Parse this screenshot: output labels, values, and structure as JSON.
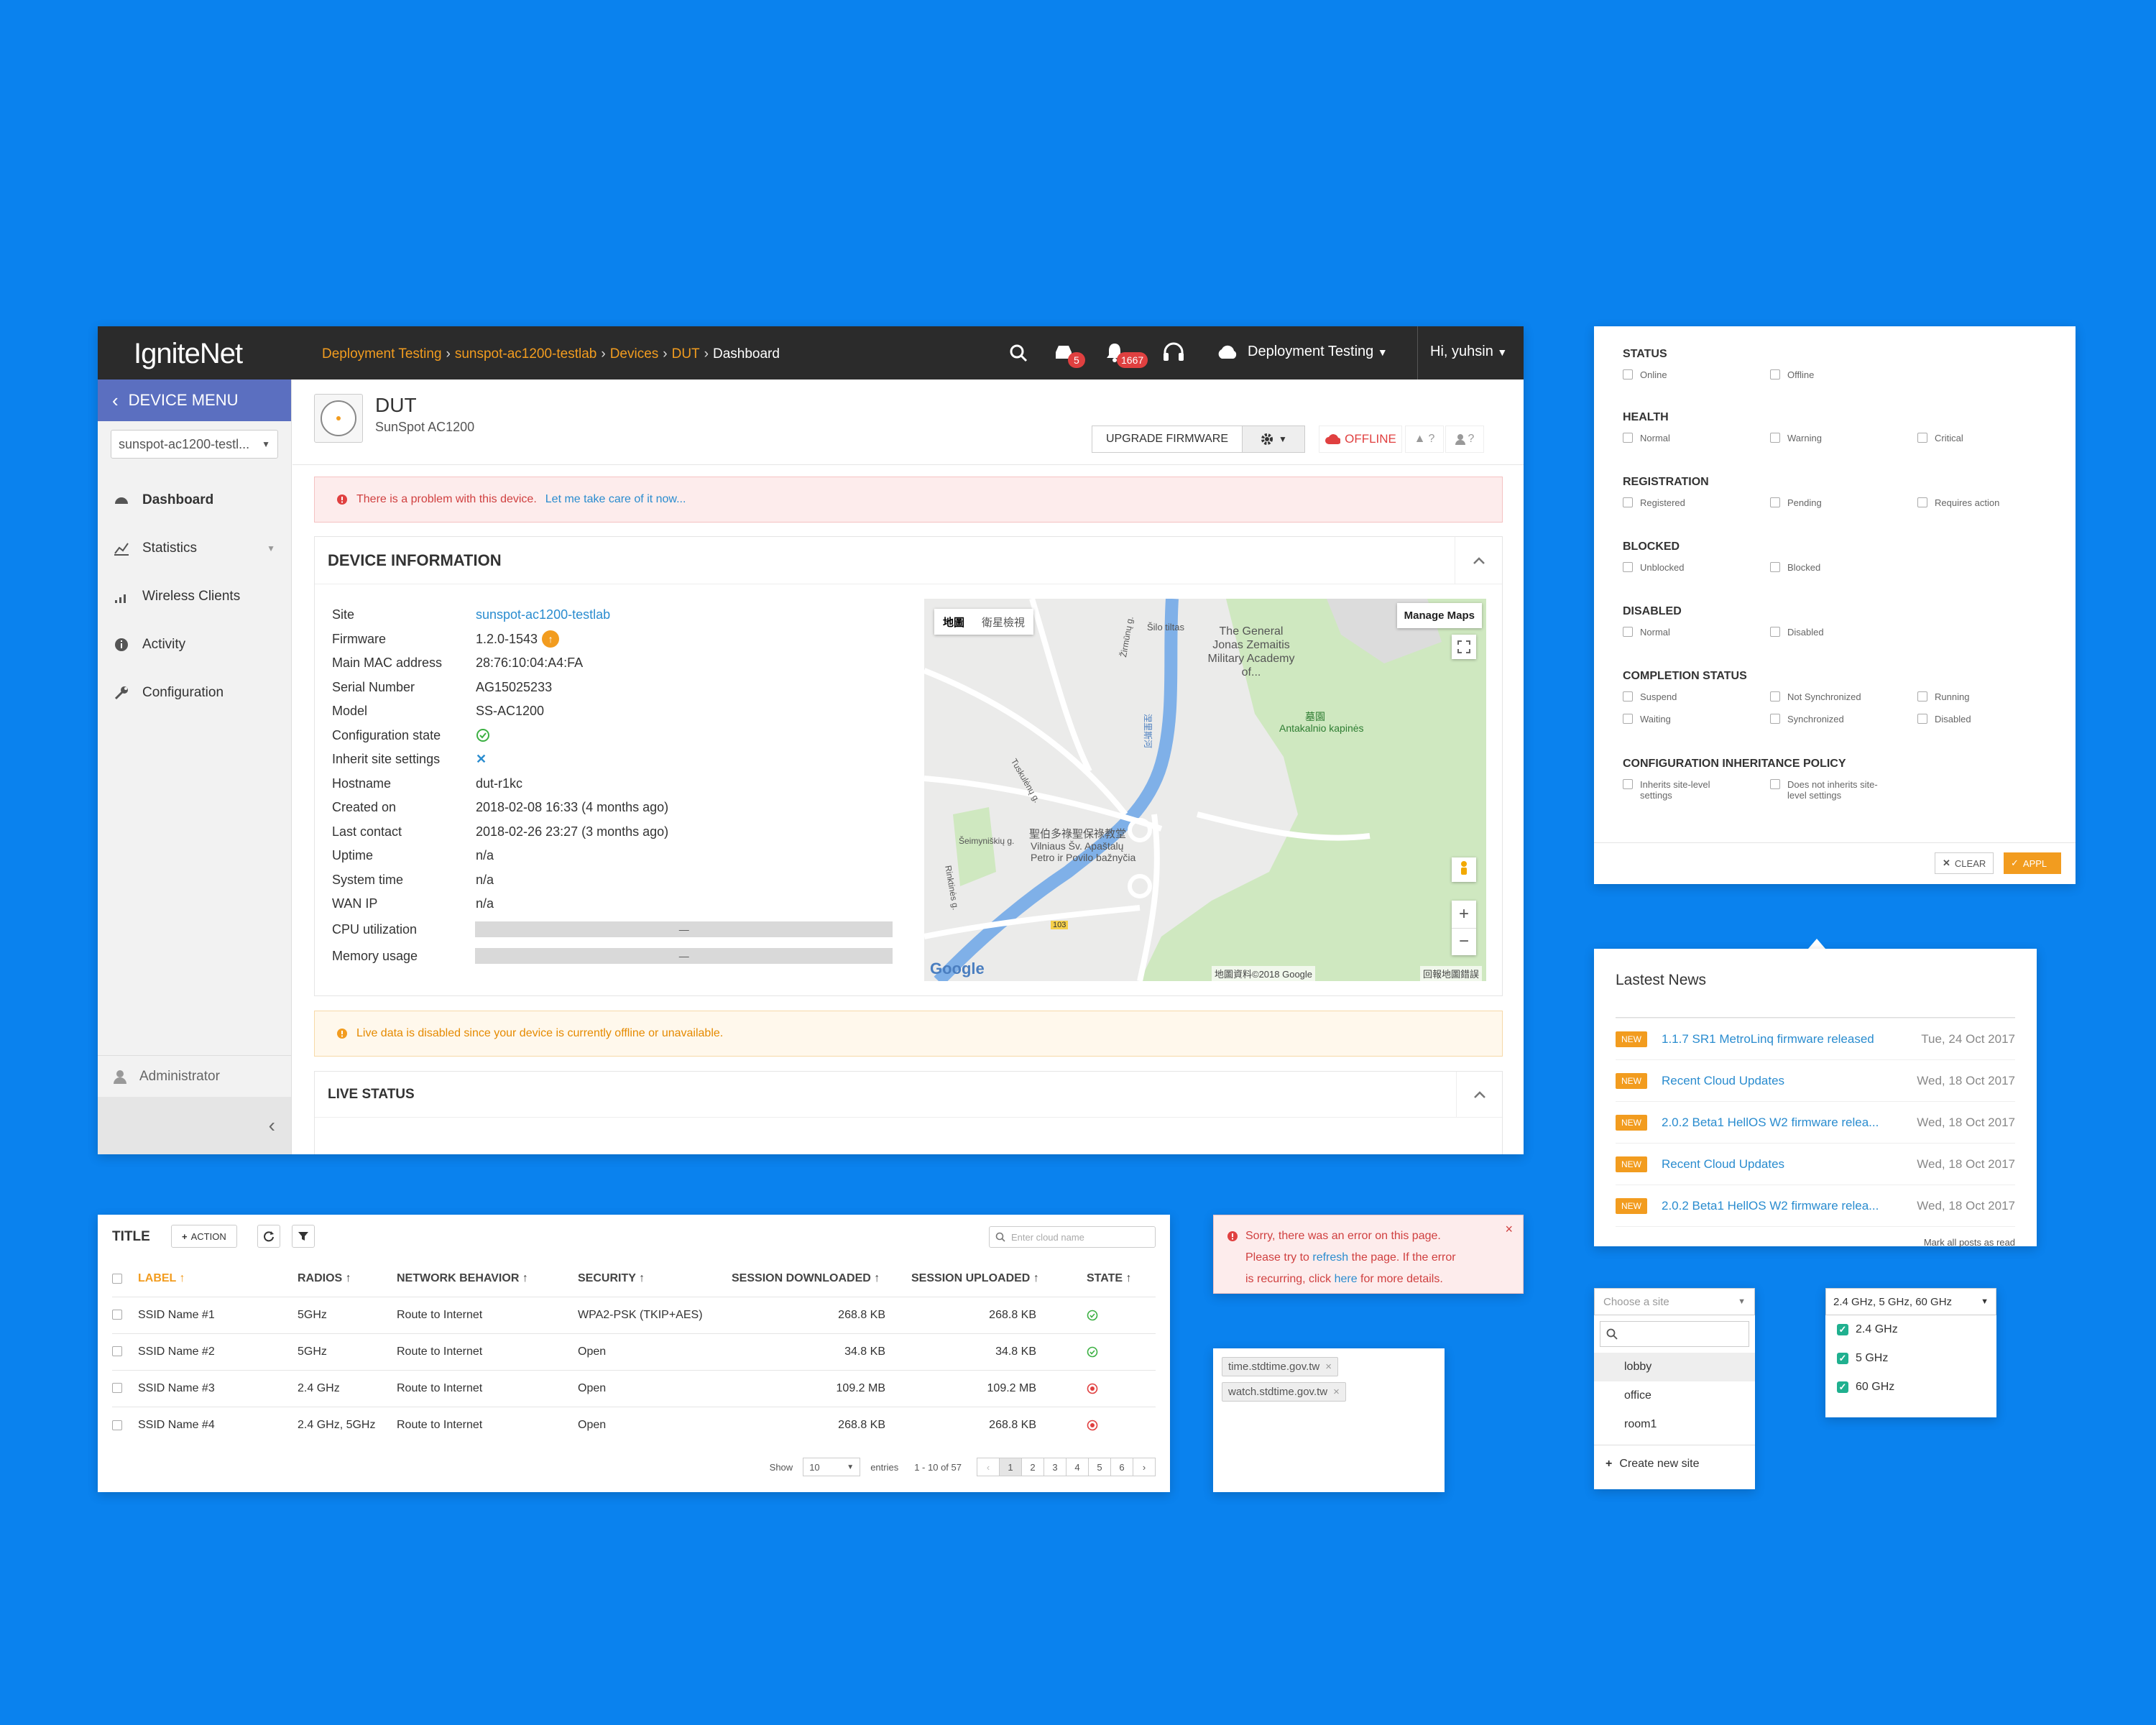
{
  "brand": "IgniteNet",
  "breadcrumb": [
    "Deployment Testing",
    "sunspot-ac1200-testlab",
    "Devices",
    "DUT",
    "Dashboard"
  ],
  "topbar": {
    "badge_inbox": "5",
    "badge_notifications": "1667",
    "org": "Deployment Testing",
    "user": "Hi, yuhsin"
  },
  "sidebar": {
    "menu_title": "DEVICE MENU",
    "device_select": "sunspot-ac1200-testl...",
    "items": [
      {
        "label": "Dashboard"
      },
      {
        "label": "Statistics"
      },
      {
        "label": "Wireless Clients"
      },
      {
        "label": "Activity"
      },
      {
        "label": "Configuration"
      }
    ],
    "footer_user": "Administrator"
  },
  "device": {
    "name": "DUT",
    "model": "SunSpot AC1200",
    "upgrade_label": "UPGRADE FIRMWARE",
    "status": "OFFLINE",
    "alerts": "?",
    "users": "?"
  },
  "alert_problem": {
    "text": "There is a problem with this device.",
    "link": "Let me take care of it now..."
  },
  "device_info": {
    "title": "DEVICE INFORMATION",
    "rows": [
      {
        "k": "Site",
        "v": "sunspot-ac1200-testlab"
      },
      {
        "k": "Firmware",
        "v": "1.2.0-1543"
      },
      {
        "k": "Main MAC address",
        "v": "28:76:10:04:A4:FA"
      },
      {
        "k": "Serial Number",
        "v": "AG15025233"
      },
      {
        "k": "Model",
        "v": "SS-AC1200"
      },
      {
        "k": "Configuration state",
        "v": ""
      },
      {
        "k": "Inherit site settings",
        "v": ""
      },
      {
        "k": "Hostname",
        "v": "dut-r1kc"
      },
      {
        "k": "Created on",
        "v": "2018-02-08 16:33 (4 months ago)"
      },
      {
        "k": "Last contact",
        "v": "2018-02-26 23:27 (3 months ago)"
      },
      {
        "k": "Uptime",
        "v": "n/a"
      },
      {
        "k": "System time",
        "v": "n/a"
      },
      {
        "k": "WAN IP",
        "v": "n/a"
      },
      {
        "k": "CPU utilization",
        "v": "—"
      },
      {
        "k": "Memory usage",
        "v": "—"
      }
    ],
    "map": {
      "tab_map": "地圖",
      "tab_sat": "衛星檢視",
      "manage": "Manage Maps",
      "labels": [
        "The General Jonas Zemaitis Military Academy of...",
        "Antakalnio kapinės",
        "墓園",
        "聖伯多祿聖保祿教堂",
        "Vilniaus Šv. Apaštalų Petro ir Povilo bažnyčia",
        "Šilo tiltas",
        "Žirmūnų g.",
        "Tuskulėnų g.",
        "Šeimyniškių g.",
        "Rinktinės g.",
        "涅里斯河",
        "103"
      ],
      "google": "Google",
      "copyright": "地圖資料©2018 Google",
      "report": "回報地圖錯誤",
      "zoom_in": "+",
      "zoom_out": "−"
    }
  },
  "alert_live": "Live data is disabled since your device is currently offline or unavailable.",
  "live_status": {
    "title": "LIVE STATUS"
  },
  "filter": {
    "sections": [
      {
        "title": "STATUS",
        "options": [
          "Online",
          "Offline"
        ]
      },
      {
        "title": "HEALTH",
        "options": [
          "Normal",
          "Warning",
          "Critical"
        ]
      },
      {
        "title": "REGISTRATION",
        "options": [
          "Registered",
          "Pending",
          "Requires action"
        ]
      },
      {
        "title": "BLOCKED",
        "options": [
          "Unblocked",
          "Blocked"
        ]
      },
      {
        "title": "DISABLED",
        "options": [
          "Normal",
          "Disabled"
        ]
      },
      {
        "title": "COMPLETION STATUS",
        "options": [
          "Suspend",
          "Not Synchronized",
          "Running",
          "Waiting",
          "Synchronized",
          "Disabled"
        ]
      },
      {
        "title": "CONFIGURATION INHERITANCE POLICY",
        "options": [
          "Inherits site-level settings",
          "Does not inherits site-level settings"
        ]
      }
    ],
    "clear": "CLEAR",
    "apply": "APPL"
  },
  "news": {
    "title": "Lastest News",
    "badge": "NEW",
    "items": [
      {
        "title": "1.1.7 SR1 MetroLinq firmware released",
        "date": "Tue, 24 Oct 2017"
      },
      {
        "title": "Recent Cloud Updates",
        "date": "Wed, 18 Oct 2017"
      },
      {
        "title": "2.0.2 Beta1 HellOS W2 firmware relea...",
        "date": "Wed, 18 Oct 2017"
      },
      {
        "title": "Recent Cloud Updates",
        "date": "Wed, 18 Oct 2017"
      },
      {
        "title": "2.0.2 Beta1 HellOS W2 firmware relea...",
        "date": "Wed, 18 Oct 2017"
      }
    ],
    "mark_all": "Mark all posts as read"
  },
  "table": {
    "title": "TITLE",
    "action": "ACTION",
    "search_placeholder": "Enter cloud name",
    "headers": [
      "LABEL",
      "RADIOS",
      "NETWORK BEHAVIOR",
      "SECURITY",
      "SESSION DOWNLOADED",
      "SESSION UPLOADED",
      "STATE"
    ],
    "rows": [
      {
        "label": "SSID Name #1",
        "radios": "5GHz",
        "behavior": "Route to Internet",
        "security": "WPA2-PSK (TKIP+AES)",
        "down": "268.8 KB",
        "up": "268.8 KB",
        "state": "ok"
      },
      {
        "label": "SSID Name #2",
        "radios": "5GHz",
        "behavior": "Route to Internet",
        "security": "Open",
        "down": "34.8 KB",
        "up": "34.8 KB",
        "state": "ok"
      },
      {
        "label": "SSID Name #3",
        "radios": "2.4 GHz",
        "behavior": "Route to Internet",
        "security": "Open",
        "down": "109.2 MB",
        "up": "109.2 MB",
        "state": "error"
      },
      {
        "label": "SSID Name #4",
        "radios": "2.4 GHz, 5GHz",
        "behavior": "Route to Internet",
        "security": "Open",
        "down": "268.8 KB",
        "up": "268.8 KB",
        "state": "error"
      }
    ],
    "show": "Show",
    "entries_value": "10",
    "entries": "entries",
    "range": "1 - 10 of 57",
    "pages": [
      "‹",
      "1",
      "2",
      "3",
      "4",
      "5",
      "6",
      "›"
    ]
  },
  "error_box": {
    "line1": "Sorry, there was an error on this page.",
    "p1": "Please try to ",
    "link1": "refresh",
    "p2": " the page. If the error",
    "p3": "is recurring, click ",
    "link2": "here",
    "p4": " for more details."
  },
  "tags": [
    "time.stdtime.gov.tw",
    "watch.stdtime.gov.tw"
  ],
  "site_select": {
    "placeholder": "Choose a site",
    "options": [
      "lobby",
      "office",
      "room1"
    ],
    "create": "Create new site"
  },
  "freq_select": {
    "value": "2.4 GHz, 5 GHz, 60 GHz",
    "options": [
      "2.4 GHz",
      "5 GHz",
      "60 GHz"
    ]
  },
  "colors": {
    "bg": "#0a82ee",
    "topbar": "#2b2b2b",
    "accent": "#f29c1f",
    "devmenu": "#5b6fc0",
    "link": "#2a8ccf",
    "danger": "#e04040",
    "ok": "#3cb043"
  }
}
